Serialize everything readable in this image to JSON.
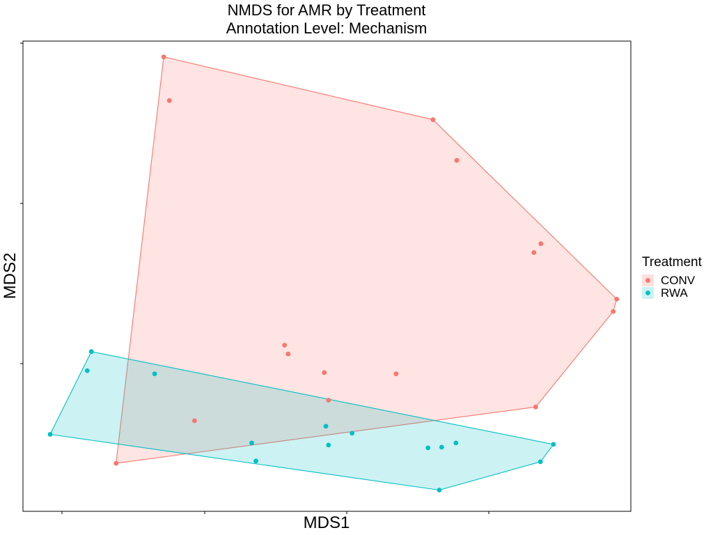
{
  "chart_data": {
    "type": "scatter",
    "title": "NMDS for AMR by Treatment",
    "subtitle": "Annotation Level: Mechanism",
    "xlabel": "MDS1",
    "ylabel": "MDS2",
    "xlim": [
      0.0,
      1.0
    ],
    "ylim": [
      0.0,
      1.0
    ],
    "grid": false,
    "show_tick_labels": false,
    "hull": true,
    "legend": {
      "title": "Treatment",
      "position": "right"
    },
    "series": [
      {
        "name": "CONV",
        "color": "#F8766D",
        "fill": "#FDE0DE",
        "x": [
          0.2315,
          0.2408,
          0.6745,
          0.7136,
          0.8405,
          0.852,
          0.9767,
          0.971,
          0.4304,
          0.4362,
          0.4956,
          0.6138,
          0.5025,
          0.2822,
          0.8434,
          0.1532
        ],
        "y": [
          0.9664,
          0.8737,
          0.8329,
          0.7464,
          0.5503,
          0.5692,
          0.4512,
          0.4251,
          0.3534,
          0.3346,
          0.2951,
          0.2924,
          0.2363,
          0.1926,
          0.2219,
          0.102
        ]
      },
      {
        "name": "RWA",
        "color": "#00BFC4",
        "fill": "#CCF2F3",
        "x": [
          0.1125,
          0.1057,
          0.2166,
          0.0447,
          0.3763,
          0.3832,
          0.4983,
          0.5026,
          0.5414,
          0.6663,
          0.7123,
          0.6888,
          0.8727,
          0.8513,
          0.6849
        ],
        "y": [
          0.3397,
          0.2991,
          0.2924,
          0.1637,
          0.1453,
          0.1069,
          0.1809,
          0.1409,
          0.1661,
          0.135,
          0.1453,
          0.1365,
          0.1424,
          0.1054,
          0.0452
        ]
      }
    ]
  }
}
